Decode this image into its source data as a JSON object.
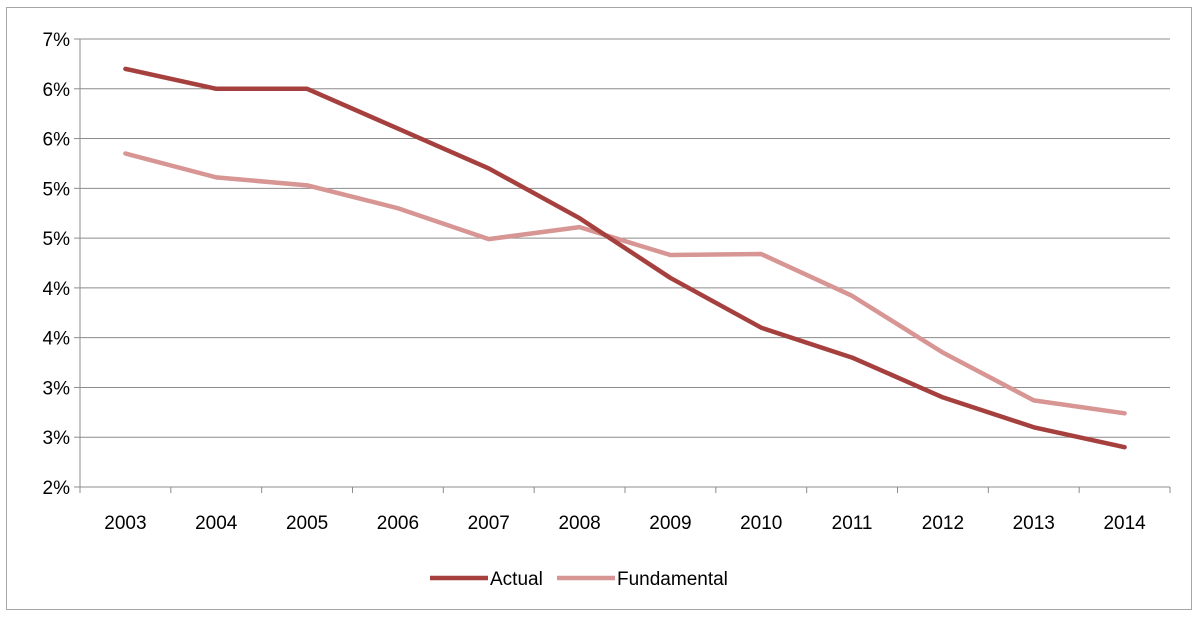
{
  "chart_data": {
    "type": "line",
    "title": "",
    "xlabel": "",
    "ylabel": "",
    "categories": [
      "2003",
      "2004",
      "2005",
      "2006",
      "2007",
      "2008",
      "2009",
      "2010",
      "2011",
      "2012",
      "2013",
      "2014"
    ],
    "y_ticks": [
      {
        "value": 2.0,
        "label": "2%"
      },
      {
        "value": 2.5,
        "label": "3%"
      },
      {
        "value": 3.0,
        "label": "3%"
      },
      {
        "value": 3.5,
        "label": "4%"
      },
      {
        "value": 4.0,
        "label": "4%"
      },
      {
        "value": 4.5,
        "label": "5%"
      },
      {
        "value": 5.0,
        "label": "5%"
      },
      {
        "value": 5.5,
        "label": "6%"
      },
      {
        "value": 6.0,
        "label": "6%"
      },
      {
        "value": 6.5,
        "label": "7%"
      }
    ],
    "ylim": [
      2.0,
      6.5
    ],
    "grid": true,
    "legend_position": "bottom",
    "series": [
      {
        "name": "Actual",
        "color": "#a5403e",
        "values": [
          6.2,
          6.0,
          6.0,
          5.6,
          5.2,
          4.7,
          4.1,
          3.6,
          3.3,
          2.9,
          2.6,
          2.4
        ]
      },
      {
        "name": "Fundamental",
        "color": "#d79593",
        "values": [
          5.35,
          5.11,
          5.03,
          4.8,
          4.49,
          4.61,
          4.33,
          4.34,
          3.92,
          3.35,
          2.87,
          2.74
        ]
      }
    ]
  }
}
